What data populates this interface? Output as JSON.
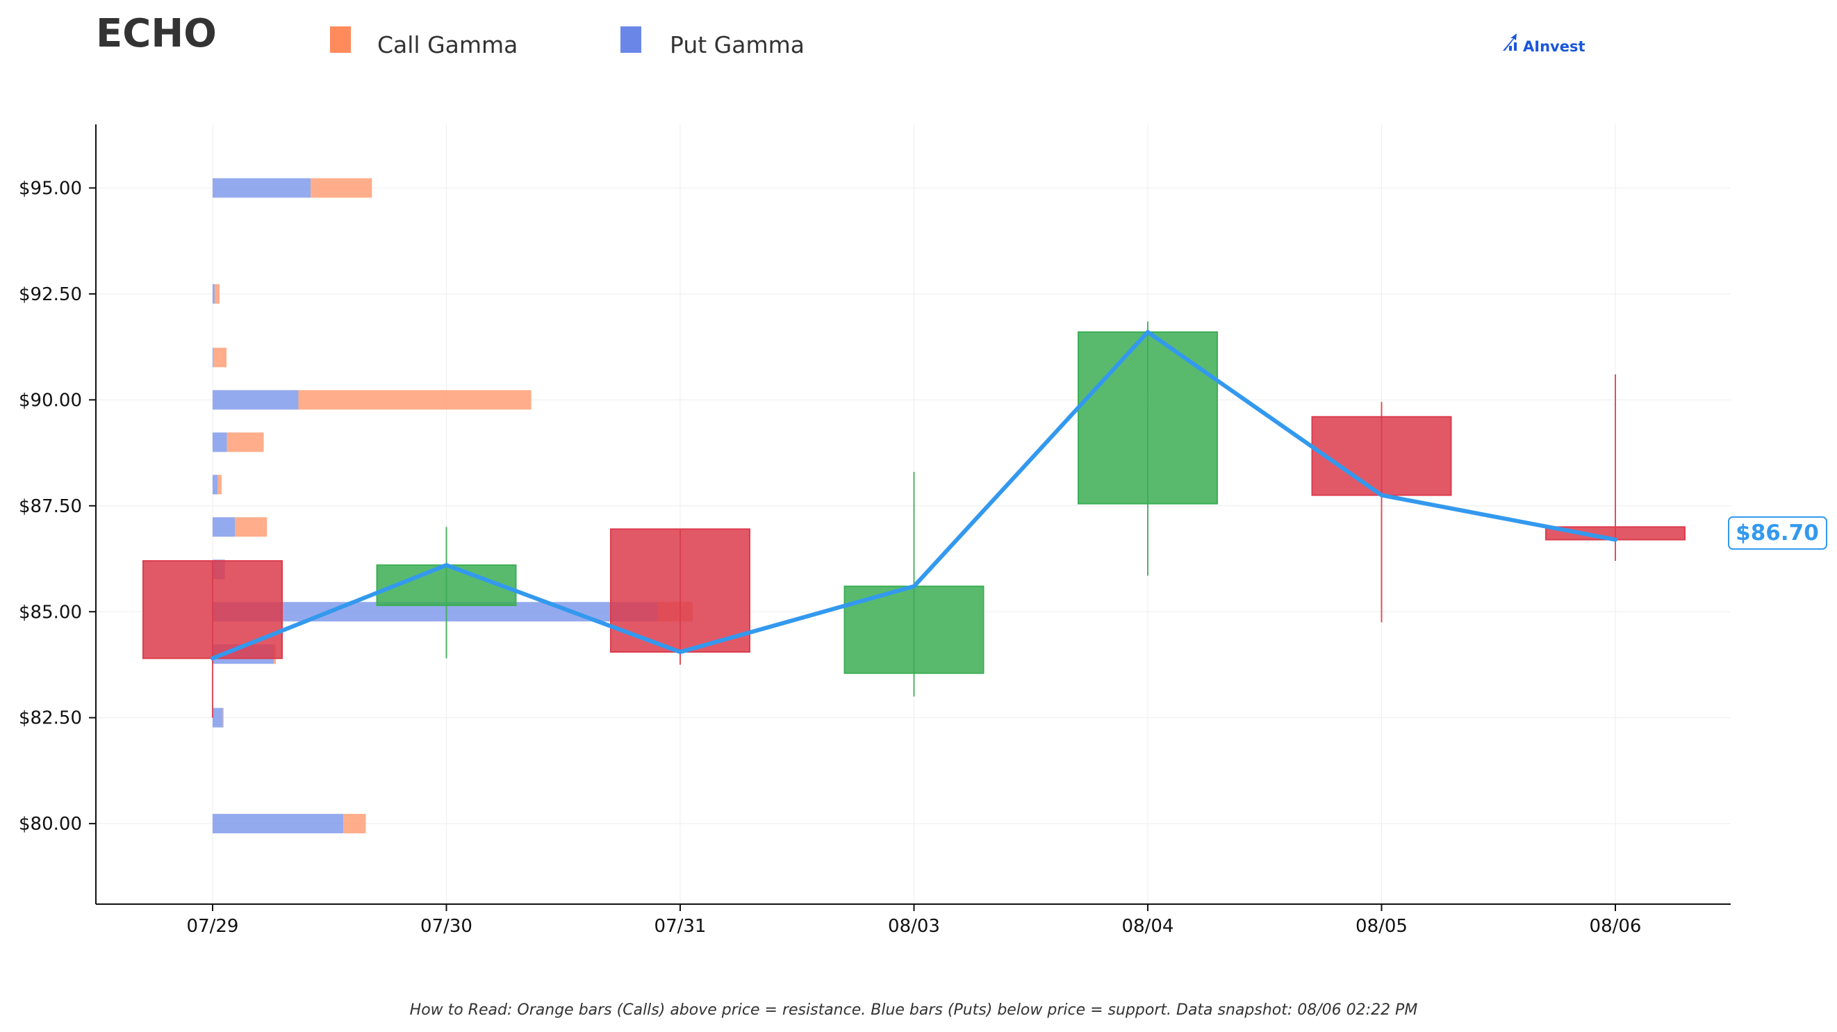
{
  "title": "ECHO",
  "legend": [
    {
      "label": "Call Gamma",
      "color": "#ff8a5c"
    },
    {
      "label": "Put Gamma",
      "color": "#6a87e8"
    }
  ],
  "brand": "AInvest",
  "footnote": "How to Read: Orange bars (Calls) above price = resistance. Blue bars (Puts) below price = support. Data snapshot: 08/06 02:22 PM",
  "current_price_label": "$86.70",
  "colors": {
    "up": "#3cae55",
    "down": "#dc3c4c",
    "line": "#3399ee",
    "call": "#ff9b70",
    "put": "#7c97ea"
  },
  "chart_data": {
    "type": "candlestick",
    "categories": [
      "07/29",
      "07/30",
      "07/31",
      "08/03",
      "08/04",
      "08/05",
      "08/06"
    ],
    "ylim": [
      78.1,
      96.5
    ],
    "yticks": [
      80.0,
      82.5,
      85.0,
      87.5,
      90.0,
      92.5,
      95.0
    ],
    "ytick_labels": [
      "$80.00",
      "$82.50",
      "$85.00",
      "$87.50",
      "$90.00",
      "$92.50",
      "$95.00"
    ],
    "candles": [
      {
        "open": 86.2,
        "high": 86.2,
        "low": 82.5,
        "close": 83.9
      },
      {
        "open": 85.15,
        "high": 87.0,
        "low": 83.9,
        "close": 86.1
      },
      {
        "open": 86.95,
        "high": 86.95,
        "low": 83.75,
        "close": 84.05
      },
      {
        "open": 83.55,
        "high": 88.3,
        "low": 83.0,
        "close": 85.6
      },
      {
        "open": 87.55,
        "high": 91.85,
        "low": 85.85,
        "close": 91.6
      },
      {
        "open": 89.6,
        "high": 89.95,
        "low": 84.75,
        "close": 87.75
      },
      {
        "open": 87.0,
        "high": 90.6,
        "low": 86.2,
        "close": 86.7
      }
    ],
    "close_line": [
      83.9,
      86.1,
      84.05,
      85.6,
      91.6,
      87.75,
      86.7
    ],
    "current_price": 86.7,
    "gamma_profile": {
      "strikes": [
        95.0,
        92.5,
        91.0,
        90.0,
        89.0,
        88.0,
        87.0,
        86.0,
        85.0,
        84.0,
        82.5,
        80.0
      ],
      "put_gamma": [
        2.4,
        0.05,
        0.02,
        2.1,
        0.35,
        0.12,
        0.55,
        0.3,
        10.9,
        1.5,
        0.25,
        3.2
      ],
      "call_gamma": [
        1.5,
        0.12,
        0.32,
        5.7,
        0.9,
        0.1,
        0.78,
        0.0,
        0.85,
        0.05,
        0.02,
        0.55
      ]
    }
  }
}
